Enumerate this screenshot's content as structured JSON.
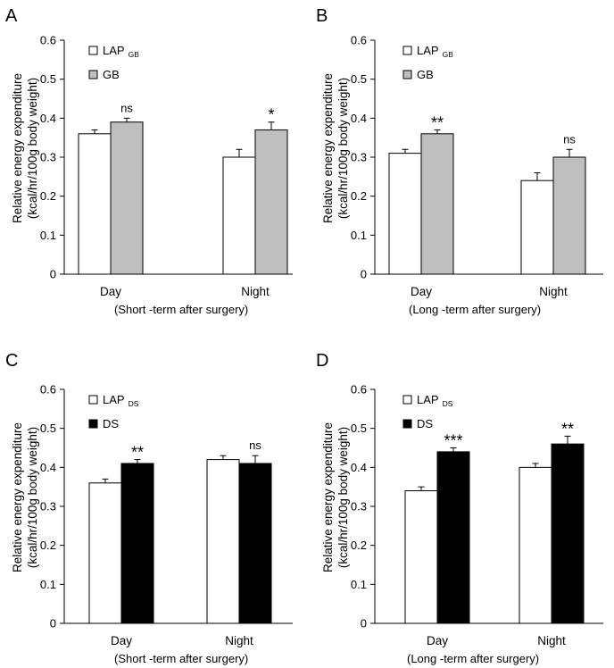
{
  "chart_data": [
    {
      "panel": "A",
      "type": "bar",
      "ylabel": [
        "Relative energy expenditure",
        "(kcal/hr/100g body weight)"
      ],
      "ylim": [
        0,
        0.6
      ],
      "yticks": [
        "0",
        "0.1",
        "0.2",
        "0.3",
        "0.4",
        "0.5",
        "0.6"
      ],
      "categories": [
        "Day",
        "Night"
      ],
      "xlabel": "(Short -term after surgery)",
      "series": [
        {
          "name": "LAP",
          "name_sub": "GB",
          "color": "#ffffff",
          "values": [
            0.36,
            0.3
          ],
          "errors": [
            0.01,
            0.02
          ]
        },
        {
          "name": "GB",
          "name_sub": "",
          "color": "#bfbfbf",
          "values": [
            0.39,
            0.37
          ],
          "errors": [
            0.01,
            0.02
          ]
        }
      ],
      "significance": [
        "ns",
        "*"
      ]
    },
    {
      "panel": "B",
      "type": "bar",
      "ylabel": [
        "Relative energy expenditure",
        "(kcal/hr/100g body weight)"
      ],
      "ylim": [
        0,
        0.6
      ],
      "yticks": [
        "0",
        "0.1",
        "0.2",
        "0.3",
        "0.4",
        "0.5",
        "0.6"
      ],
      "categories": [
        "Day",
        "Night"
      ],
      "xlabel": "(Long -term after surgery)",
      "series": [
        {
          "name": "LAP",
          "name_sub": "GB",
          "color": "#ffffff",
          "values": [
            0.31,
            0.24
          ],
          "errors": [
            0.01,
            0.02
          ]
        },
        {
          "name": "GB",
          "name_sub": "",
          "color": "#bfbfbf",
          "values": [
            0.36,
            0.3
          ],
          "errors": [
            0.01,
            0.02
          ]
        }
      ],
      "significance": [
        "**",
        "ns"
      ]
    },
    {
      "panel": "C",
      "type": "bar",
      "ylabel": [
        "Relative energy expenditure",
        "(kcal/hr/100g body weight)"
      ],
      "ylim": [
        0,
        0.6
      ],
      "yticks": [
        "0",
        "0.1",
        "0.2",
        "0.3",
        "0.4",
        "0.5",
        "0.6"
      ],
      "categories": [
        "Day",
        "Night"
      ],
      "xlabel": "(Short -term after surgery)",
      "series": [
        {
          "name": "LAP",
          "name_sub": "DS",
          "color": "#ffffff",
          "values": [
            0.36,
            0.42
          ],
          "errors": [
            0.01,
            0.01
          ]
        },
        {
          "name": "DS",
          "name_sub": "",
          "color": "#000000",
          "values": [
            0.41,
            0.41
          ],
          "errors": [
            0.01,
            0.02
          ]
        }
      ],
      "significance": [
        "**",
        "ns"
      ]
    },
    {
      "panel": "D",
      "type": "bar",
      "ylabel": [
        "Relative energy expenditure",
        "(kcal/hr/100g body weight)"
      ],
      "ylim": [
        0,
        0.6
      ],
      "yticks": [
        "0",
        "0.1",
        "0.2",
        "0.3",
        "0.4",
        "0.5",
        "0.6"
      ],
      "categories": [
        "Day",
        "Night"
      ],
      "xlabel": "(Long -term after surgery)",
      "series": [
        {
          "name": "LAP",
          "name_sub": "DS",
          "color": "#ffffff",
          "values": [
            0.34,
            0.4
          ],
          "errors": [
            0.01,
            0.01
          ]
        },
        {
          "name": "DS",
          "name_sub": "",
          "color": "#000000",
          "values": [
            0.44,
            0.46
          ],
          "errors": [
            0.01,
            0.02
          ]
        }
      ],
      "significance": [
        "***",
        "**"
      ]
    }
  ]
}
